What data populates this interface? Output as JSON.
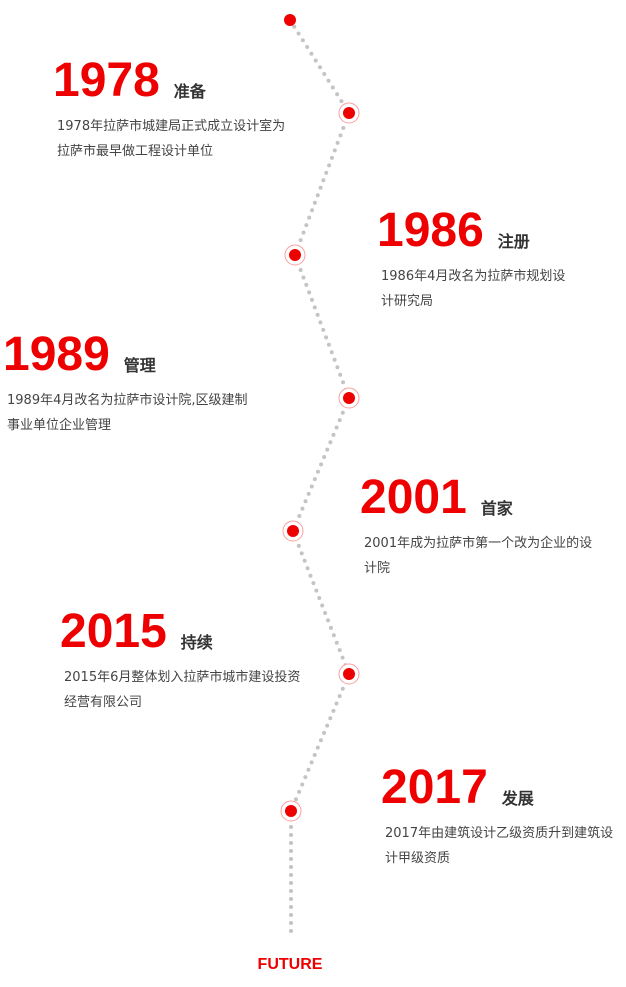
{
  "accent_color": "#ee0000",
  "line_color": "#c4c4c4",
  "timeline": [
    {
      "year": "1978",
      "label": "准备",
      "desc": "1978年拉萨市城建局正式成立设计室为拉萨市最早做工程设计单位"
    },
    {
      "year": "1986",
      "label": "注册",
      "desc": "1986年4月改名为拉萨市规划设计研究局"
    },
    {
      "year": "1989",
      "label": "管理",
      "desc": "1989年4月改名为拉萨市设计院,区级建制事业单位企业管理"
    },
    {
      "year": "2001",
      "label": "首家",
      "desc": "2001年成为拉萨市第一个改为企业的设计院"
    },
    {
      "year": "2015",
      "label": "持续",
      "desc": "2015年6月整体划入拉萨市城市建设投资经营有限公司"
    },
    {
      "year": "2017",
      "label": "发展",
      "desc": "2017年由建筑设计乙级资质升到建筑设计甲级资质"
    }
  ],
  "future_label": "FUTURE"
}
